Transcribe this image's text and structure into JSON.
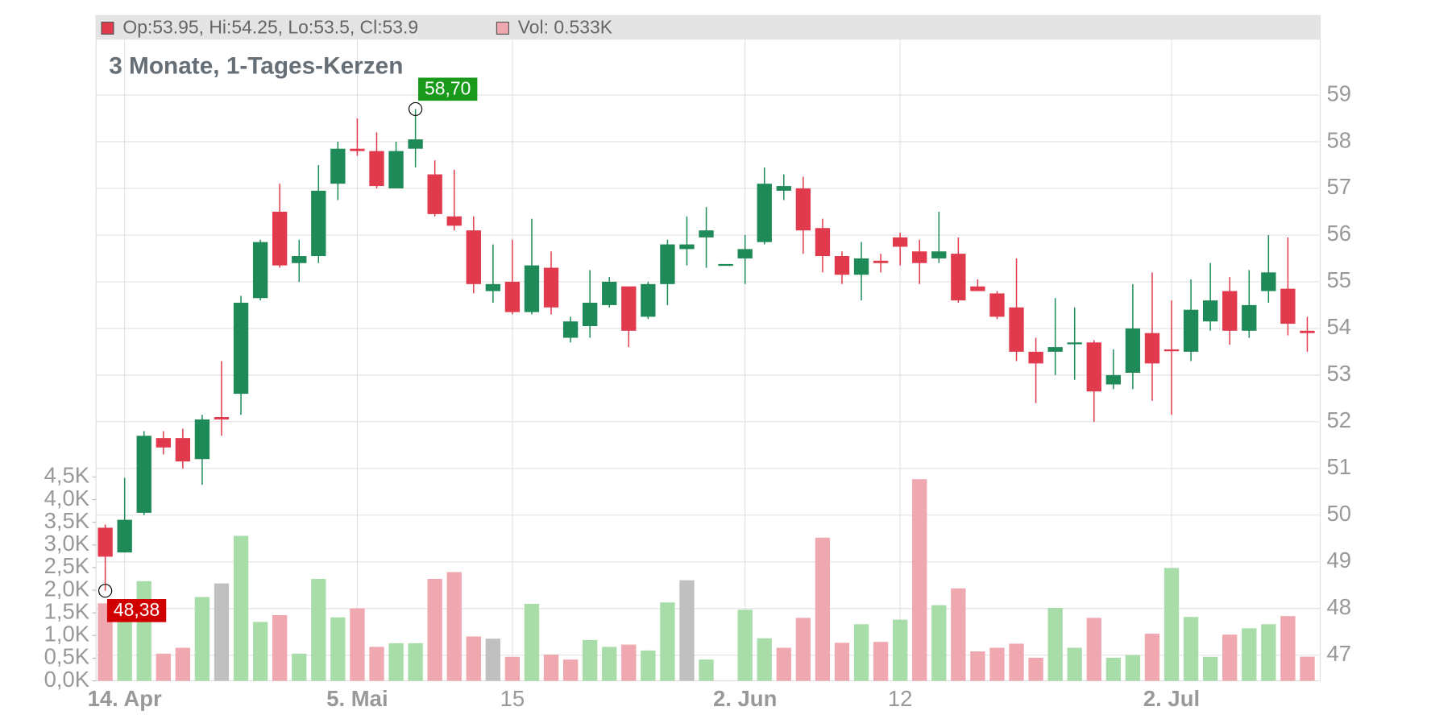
{
  "chart_data": {
    "type": "candlestick",
    "title": "3 Monate, 1-Tages-Kerzen",
    "header_ohlc": "Op:53.95, Hi:54.25, Lo:53.5, Cl:53.9",
    "header_volume": "Vol: 0.533K",
    "up_color": "#1e8a57",
    "down_color": "#e03a4c",
    "categories": [
      null,
      "14. Apr",
      null,
      null,
      null,
      null,
      null,
      null,
      null,
      null,
      null,
      null,
      null,
      "5. Mai",
      null,
      null,
      null,
      null,
      null,
      null,
      null,
      "15",
      null,
      null,
      null,
      null,
      null,
      null,
      null,
      null,
      null,
      null,
      null,
      "2. Jun",
      null,
      null,
      null,
      null,
      null,
      null,
      null,
      "12",
      null,
      null,
      null,
      null,
      null,
      null,
      null,
      null,
      null,
      null,
      null,
      null,
      null,
      "2. Jul",
      null,
      null,
      null,
      null,
      null,
      null,
      null
    ],
    "open": [
      49.73,
      49.2,
      50.05,
      51.65,
      51.65,
      51.2,
      52.1,
      52.6,
      54.65,
      56.5,
      55.4,
      55.55,
      57.1,
      57.85,
      57.8,
      57.0,
      57.85,
      57.3,
      56.4,
      56.1,
      54.8,
      55.0,
      54.35,
      55.3,
      53.8,
      54.05,
      54.5,
      54.9,
      54.25,
      54.95,
      55.7,
      55.95,
      55.38,
      55.5,
      55.85,
      56.95,
      57.0,
      56.15,
      55.55,
      55.15,
      55.45,
      55.95,
      55.65,
      55.5,
      55.6,
      54.9,
      54.75,
      54.45,
      53.5,
      53.5,
      53.7,
      53.7,
      52.8,
      53.05,
      53.9,
      53.55,
      53.5,
      54.15,
      54.8,
      53.95,
      54.8,
      54.85,
      53.95
    ],
    "high": [
      49.8,
      50.8,
      51.8,
      51.8,
      51.85,
      52.15,
      53.3,
      54.7,
      55.9,
      57.1,
      55.9,
      57.5,
      58.0,
      58.5,
      58.2,
      58.0,
      58.7,
      57.6,
      57.4,
      56.4,
      55.8,
      55.9,
      56.35,
      55.65,
      54.25,
      55.25,
      55.1,
      54.9,
      55.0,
      55.9,
      56.4,
      56.6,
      55.38,
      56.0,
      57.45,
      57.3,
      57.25,
      56.35,
      55.65,
      55.85,
      55.6,
      56.05,
      55.9,
      56.5,
      55.95,
      55.05,
      54.8,
      55.5,
      53.8,
      54.65,
      54.45,
      53.75,
      53.55,
      54.95,
      55.2,
      54.6,
      55.05,
      55.4,
      55.1,
      55.25,
      56.0,
      55.95,
      54.25
    ],
    "low": [
      48.38,
      49.2,
      50.0,
      51.3,
      51.0,
      50.65,
      51.7,
      52.15,
      54.6,
      55.3,
      55.0,
      55.4,
      56.75,
      57.7,
      57.0,
      57.0,
      57.45,
      56.4,
      56.1,
      54.75,
      54.55,
      54.3,
      54.3,
      54.3,
      53.7,
      53.8,
      54.45,
      53.6,
      54.2,
      54.5,
      55.35,
      55.3,
      55.38,
      54.95,
      55.8,
      56.75,
      55.6,
      55.2,
      54.95,
      54.6,
      55.2,
      55.35,
      54.95,
      55.4,
      54.55,
      54.8,
      54.2,
      53.3,
      52.4,
      53.0,
      52.9,
      52.0,
      52.7,
      52.7,
      52.45,
      52.15,
      53.3,
      53.95,
      53.65,
      53.8,
      54.55,
      53.85,
      53.5
    ],
    "close": [
      49.11,
      49.9,
      51.7,
      51.45,
      51.15,
      52.05,
      52.05,
      54.55,
      55.85,
      55.35,
      55.55,
      56.95,
      57.85,
      57.8,
      57.05,
      57.8,
      58.05,
      56.45,
      56.2,
      54.95,
      54.95,
      54.35,
      55.35,
      54.45,
      54.15,
      54.55,
      55.0,
      53.95,
      54.95,
      55.8,
      55.8,
      56.1,
      55.38,
      55.7,
      57.1,
      57.05,
      56.1,
      55.55,
      55.15,
      55.5,
      55.4,
      55.75,
      55.4,
      55.65,
      54.6,
      54.8,
      54.25,
      53.5,
      53.25,
      53.6,
      53.7,
      52.65,
      53.0,
      54.0,
      53.25,
      53.52,
      54.4,
      54.6,
      53.95,
      54.5,
      55.2,
      54.1,
      53.9
    ],
    "volume": [
      1.71,
      1.6,
      2.2,
      0.6,
      0.73,
      1.85,
      2.15,
      3.2,
      1.3,
      1.45,
      0.6,
      2.25,
      1.4,
      1.6,
      0.75,
      0.83,
      0.83,
      2.25,
      2.4,
      0.98,
      0.93,
      0.53,
      1.7,
      0.58,
      0.47,
      0.9,
      0.75,
      0.8,
      0.67,
      1.73,
      2.22,
      0.47,
      0,
      1.57,
      0.94,
      0.73,
      1.39,
      3.16,
      0.84,
      1.25,
      0.86,
      1.35,
      4.45,
      1.67,
      2.04,
      0.65,
      0.73,
      0.82,
      0.51,
      1.61,
      0.73,
      1.39,
      0.51,
      0.57,
      1.04,
      2.49,
      1.41,
      0.53,
      1.02,
      1.16,
      1.25,
      1.43,
      0.533
    ],
    "volume_colors": [
      "#f0a8b0",
      "#a8dca8",
      "#a8dca8",
      "#f0a8b0",
      "#f0a8b0",
      "#a8dca8",
      "#c0c0c0",
      "#a8dca8",
      "#a8dca8",
      "#f0a8b0",
      "#a8dca8",
      "#a8dca8",
      "#a8dca8",
      "#f0a8b0",
      "#f0a8b0",
      "#a8dca8",
      "#a8dca8",
      "#f0a8b0",
      "#f0a8b0",
      "#f0a8b0",
      "#c0c0c0",
      "#f0a8b0",
      "#a8dca8",
      "#f0a8b0",
      "#f0a8b0",
      "#a8dca8",
      "#a8dca8",
      "#f0a8b0",
      "#a8dca8",
      "#a8dca8",
      "#c0c0c0",
      "#a8dca8",
      "#a8dca8",
      "#a8dca8",
      "#a8dca8",
      "#f0a8b0",
      "#f0a8b0",
      "#f0a8b0",
      "#f0a8b0",
      "#a8dca8",
      "#f0a8b0",
      "#a8dca8",
      "#f0a8b0",
      "#a8dca8",
      "#f0a8b0",
      "#f0a8b0",
      "#f0a8b0",
      "#f0a8b0",
      "#f0a8b0",
      "#a8dca8",
      "#a8dca8",
      "#f0a8b0",
      "#a8dca8",
      "#a8dca8",
      "#f0a8b0",
      "#a8dca8",
      "#a8dca8",
      "#a8dca8",
      "#f0a8b0",
      "#a8dca8",
      "#a8dca8",
      "#f0a8b0",
      "#f0a8b0"
    ],
    "ylim": [
      46.45,
      60.7
    ],
    "yticks": [
      47,
      48,
      49,
      50,
      51,
      52,
      53,
      54,
      55,
      56,
      57,
      58,
      59
    ],
    "volume_lim": [
      0,
      14.68
    ],
    "volume_ticks": [
      {
        "value": 0,
        "label": "0,0K"
      },
      {
        "value": 0.5,
        "label": "0,5K"
      },
      {
        "value": 1,
        "label": "1,0K"
      },
      {
        "value": 1.5,
        "label": "1,5K"
      },
      {
        "value": 2,
        "label": "2,0K"
      },
      {
        "value": 2.5,
        "label": "2,5K"
      },
      {
        "value": 3,
        "label": "3,0K"
      },
      {
        "value": 3.5,
        "label": "3,5K"
      },
      {
        "value": 4,
        "label": "4,0K"
      },
      {
        "value": 4.5,
        "label": "4,5K"
      }
    ],
    "max_label": {
      "value": 58.7,
      "label": "58,70"
    },
    "min_label": {
      "value": 48.38,
      "label": "48,38"
    },
    "grid": true
  }
}
